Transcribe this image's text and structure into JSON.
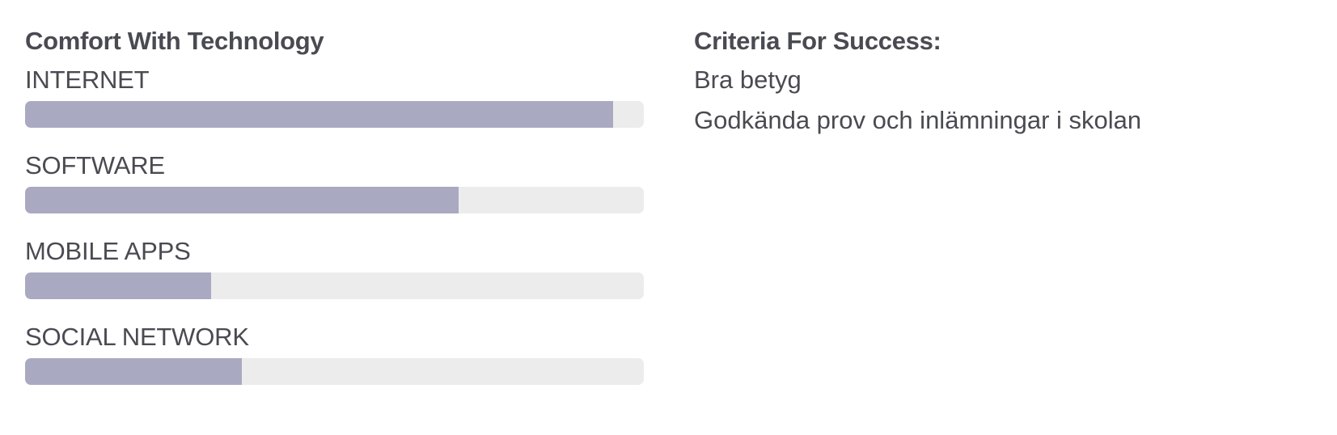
{
  "comfort": {
    "title": "Comfort With Technology",
    "items": [
      {
        "label": "INTERNET",
        "level": 0.95
      },
      {
        "label": "SOFTWARE",
        "level": 0.7
      },
      {
        "label": "MOBILE APPS",
        "level": 0.3
      },
      {
        "label": "SOCIAL NETWORK",
        "level": 0.35
      }
    ]
  },
  "criteria": {
    "title": "Criteria For Success:",
    "items": [
      "Bra betyg",
      "Godkända prov och inlämningar i skolan"
    ]
  },
  "colors": {
    "bar_fill": "#a9a9c2",
    "bar_track": "#ececec",
    "text": "#4a4a52"
  }
}
